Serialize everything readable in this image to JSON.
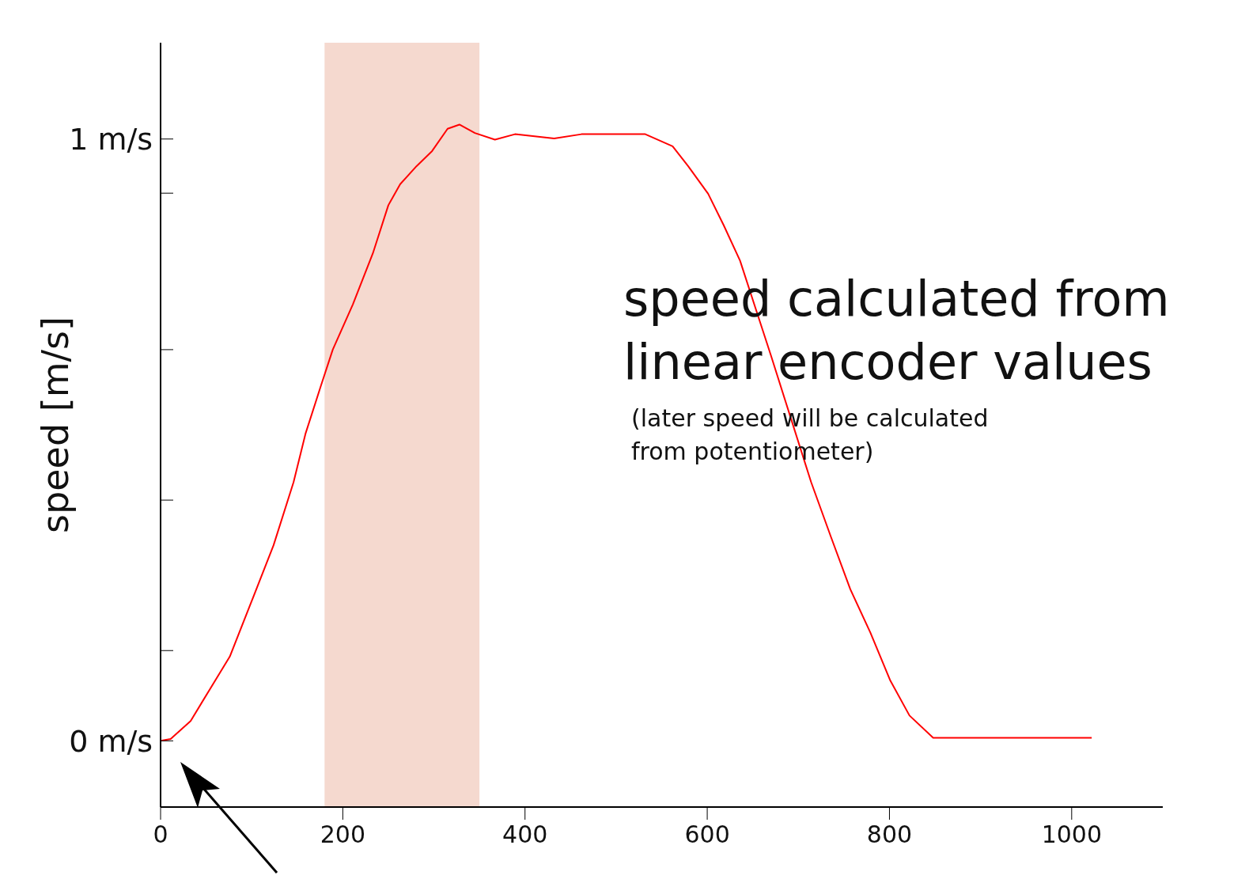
{
  "chart_data": {
    "type": "line",
    "ylabel": "speed [m/s]",
    "annotations": [
      "speed calculated from linear encoder values",
      "(later speed will be calculated from potentiometer)"
    ],
    "x": [
      0,
      11,
      33,
      55,
      76,
      102,
      124,
      146,
      159,
      176,
      189,
      211,
      233,
      250,
      263,
      281,
      298,
      315,
      328,
      345,
      367,
      389,
      432,
      462,
      532,
      562,
      579,
      601,
      618,
      636,
      653,
      670,
      692,
      714,
      736,
      757,
      779,
      801,
      822,
      848,
      909,
      1022
    ],
    "series": [
      {
        "color": "#ff0000",
        "values": [
          0,
          0.003,
          0.033,
          0.088,
          0.14,
          0.24,
          0.325,
          0.43,
          0.51,
          0.59,
          0.65,
          0.725,
          0.81,
          0.89,
          0.925,
          0.955,
          0.98,
          1.017,
          1.024,
          1.01,
          0.999,
          1.008,
          1.001,
          1.008,
          1.008,
          0.988,
          0.955,
          0.909,
          0.857,
          0.798,
          0.719,
          0.64,
          0.535,
          0.43,
          0.338,
          0.252,
          0.18,
          0.1,
          0.042,
          0.005,
          0.005,
          0.005
        ]
      }
    ],
    "bands": [
      {
        "axis": "x",
        "from": 180,
        "to": 350,
        "color": "#f5d9cf"
      }
    ],
    "xlim": [
      0,
      1100
    ],
    "xticks": [
      0,
      200,
      400,
      600,
      800,
      1000
    ],
    "ylim": [
      -0.11,
      1.16
    ],
    "yticks": [
      {
        "value": 0,
        "label": "0 m/s"
      },
      {
        "value": 0.15,
        "label": null
      },
      {
        "value": 0.4,
        "label": null
      },
      {
        "value": 0.65,
        "label": null
      },
      {
        "value": 0.91,
        "label": null
      },
      {
        "value": 1,
        "label": "1 m/s"
      }
    ],
    "grid": false,
    "legend": false,
    "marker": "none",
    "line_style": "solid"
  }
}
